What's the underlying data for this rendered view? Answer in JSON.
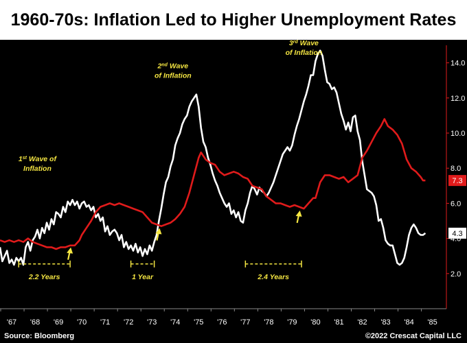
{
  "title": "1960-70s: Inflation Led to Higher Unemployment Rates",
  "footer": {
    "source": "Source: Bloomberg",
    "copyright": "©2022 Crescat Capital LLC"
  },
  "colors": {
    "inflation": "#ffffff",
    "unemployment": "#e01b1b",
    "annotation": "#f5e642",
    "background": "#000000"
  },
  "chart_data": {
    "type": "line",
    "title": "1960-70s: Inflation Led to Higher Unemployment Rates",
    "x_tick_labels": [
      "'67",
      "'68",
      "'69",
      "'70",
      "'71",
      "'72",
      "'73",
      "'74",
      "'75",
      "'76",
      "'77",
      "'78",
      "'79",
      "'80",
      "'81",
      "'82",
      "'83",
      "'84",
      "'85"
    ],
    "x_tick_years": [
      1967,
      1968,
      1969,
      1970,
      1971,
      1972,
      1973,
      1974,
      1975,
      1976,
      1977,
      1978,
      1979,
      1980,
      1981,
      1982,
      1983,
      1984,
      1985
    ],
    "xlim": [
      1966.5,
      1985.6
    ],
    "ylim": [
      0,
      15
    ],
    "y_ticks": [
      "2.0",
      "4.0",
      "6.0",
      "8.0",
      "10.0",
      "12.0",
      "14.0"
    ],
    "y_tick_values": [
      2,
      4,
      6,
      8,
      10,
      12,
      14
    ],
    "y_axis_side": "right",
    "grid": false,
    "series": [
      {
        "color": "#ffffff",
        "end_label": "4.3",
        "points": [
          [
            1966.5,
            3.5
          ],
          [
            1966.6,
            2.7
          ],
          [
            1966.8,
            3.3
          ],
          [
            1966.9,
            2.6
          ],
          [
            1967.0,
            2.8
          ],
          [
            1967.1,
            2.5
          ],
          [
            1967.2,
            2.9
          ],
          [
            1967.3,
            2.7
          ],
          [
            1967.4,
            2.9
          ],
          [
            1967.5,
            2.5
          ],
          [
            1967.6,
            3.5
          ],
          [
            1967.7,
            3.8
          ],
          [
            1967.8,
            3.3
          ],
          [
            1967.9,
            3.9
          ],
          [
            1968.0,
            4.1
          ],
          [
            1968.1,
            4.5
          ],
          [
            1968.2,
            4.0
          ],
          [
            1968.3,
            4.6
          ],
          [
            1968.4,
            4.3
          ],
          [
            1968.5,
            4.9
          ],
          [
            1968.6,
            4.5
          ],
          [
            1968.7,
            5.1
          ],
          [
            1968.8,
            4.8
          ],
          [
            1968.9,
            5.5
          ],
          [
            1969.0,
            5.4
          ],
          [
            1969.1,
            5.2
          ],
          [
            1969.2,
            5.8
          ],
          [
            1969.3,
            5.5
          ],
          [
            1969.4,
            6.1
          ],
          [
            1969.5,
            5.9
          ],
          [
            1969.6,
            6.2
          ],
          [
            1969.7,
            5.9
          ],
          [
            1969.8,
            6.1
          ],
          [
            1969.9,
            5.7
          ],
          [
            1970.0,
            6.0
          ],
          [
            1970.1,
            6.1
          ],
          [
            1970.2,
            5.8
          ],
          [
            1970.3,
            5.9
          ],
          [
            1970.4,
            5.6
          ],
          [
            1970.5,
            5.8
          ],
          [
            1970.6,
            5.2
          ],
          [
            1970.7,
            5.4
          ],
          [
            1970.8,
            5.0
          ],
          [
            1970.9,
            5.2
          ],
          [
            1971.0,
            4.4
          ],
          [
            1971.1,
            4.7
          ],
          [
            1971.2,
            4.2
          ],
          [
            1971.3,
            4.4
          ],
          [
            1971.4,
            4.5
          ],
          [
            1971.5,
            4.3
          ],
          [
            1971.6,
            3.9
          ],
          [
            1971.7,
            4.2
          ],
          [
            1971.8,
            3.5
          ],
          [
            1971.9,
            3.8
          ],
          [
            1972.0,
            3.4
          ],
          [
            1972.1,
            3.6
          ],
          [
            1972.2,
            3.3
          ],
          [
            1972.3,
            3.7
          ],
          [
            1972.4,
            3.2
          ],
          [
            1972.5,
            3.5
          ],
          [
            1972.6,
            3.0
          ],
          [
            1972.7,
            3.4
          ],
          [
            1972.8,
            3.1
          ],
          [
            1972.9,
            3.6
          ],
          [
            1973.0,
            3.3
          ],
          [
            1973.1,
            3.8
          ],
          [
            1973.2,
            4.2
          ],
          [
            1973.3,
            5.0
          ],
          [
            1973.4,
            5.7
          ],
          [
            1973.5,
            6.5
          ],
          [
            1973.6,
            7.2
          ],
          [
            1973.7,
            7.5
          ],
          [
            1973.8,
            8.1
          ],
          [
            1973.9,
            8.5
          ],
          [
            1974.0,
            9.3
          ],
          [
            1974.1,
            9.7
          ],
          [
            1974.2,
            10.0
          ],
          [
            1974.3,
            10.5
          ],
          [
            1974.4,
            10.8
          ],
          [
            1974.5,
            11.0
          ],
          [
            1974.6,
            11.5
          ],
          [
            1974.7,
            11.8
          ],
          [
            1974.8,
            12.0
          ],
          [
            1974.9,
            12.2
          ],
          [
            1975.0,
            11.5
          ],
          [
            1975.1,
            10.3
          ],
          [
            1975.2,
            9.5
          ],
          [
            1975.3,
            9.2
          ],
          [
            1975.4,
            8.6
          ],
          [
            1975.5,
            8.2
          ],
          [
            1975.6,
            7.7
          ],
          [
            1975.7,
            7.3
          ],
          [
            1975.8,
            7.0
          ],
          [
            1975.9,
            6.6
          ],
          [
            1976.0,
            6.3
          ],
          [
            1976.1,
            6.0
          ],
          [
            1976.2,
            5.8
          ],
          [
            1976.3,
            6.0
          ],
          [
            1976.4,
            5.4
          ],
          [
            1976.5,
            5.6
          ],
          [
            1976.6,
            5.2
          ],
          [
            1976.7,
            5.5
          ],
          [
            1976.8,
            5.0
          ],
          [
            1976.9,
            4.9
          ],
          [
            1977.0,
            5.6
          ],
          [
            1977.1,
            6.0
          ],
          [
            1977.2,
            6.6
          ],
          [
            1977.3,
            7.0
          ],
          [
            1977.4,
            6.8
          ],
          [
            1977.5,
            6.5
          ],
          [
            1977.6,
            6.9
          ],
          [
            1977.7,
            6.7
          ],
          [
            1977.8,
            6.6
          ],
          [
            1977.9,
            6.4
          ],
          [
            1978.0,
            6.6
          ],
          [
            1978.1,
            6.9
          ],
          [
            1978.2,
            7.2
          ],
          [
            1978.3,
            7.6
          ],
          [
            1978.4,
            8.0
          ],
          [
            1978.5,
            8.4
          ],
          [
            1978.6,
            8.8
          ],
          [
            1978.7,
            9.0
          ],
          [
            1978.8,
            9.2
          ],
          [
            1978.9,
            9.0
          ],
          [
            1979.0,
            9.3
          ],
          [
            1979.1,
            9.9
          ],
          [
            1979.2,
            10.4
          ],
          [
            1979.3,
            10.8
          ],
          [
            1979.4,
            11.3
          ],
          [
            1979.5,
            11.8
          ],
          [
            1979.6,
            12.2
          ],
          [
            1979.7,
            12.7
          ],
          [
            1979.8,
            13.3
          ],
          [
            1979.9,
            13.3
          ],
          [
            1980.0,
            14.1
          ],
          [
            1980.1,
            14.5
          ],
          [
            1980.2,
            14.7
          ],
          [
            1980.3,
            14.4
          ],
          [
            1980.4,
            13.6
          ],
          [
            1980.5,
            12.9
          ],
          [
            1980.6,
            12.8
          ],
          [
            1980.7,
            12.5
          ],
          [
            1980.8,
            12.6
          ],
          [
            1980.9,
            12.3
          ],
          [
            1981.0,
            11.7
          ],
          [
            1981.1,
            11.1
          ],
          [
            1981.2,
            10.7
          ],
          [
            1981.3,
            10.2
          ],
          [
            1981.4,
            10.6
          ],
          [
            1981.5,
            10.1
          ],
          [
            1981.6,
            10.9
          ],
          [
            1981.7,
            11.0
          ],
          [
            1981.8,
            10.1
          ],
          [
            1981.9,
            9.6
          ],
          [
            1982.0,
            8.4
          ],
          [
            1982.1,
            7.6
          ],
          [
            1982.2,
            6.8
          ],
          [
            1982.3,
            6.7
          ],
          [
            1982.4,
            6.6
          ],
          [
            1982.5,
            6.4
          ],
          [
            1982.6,
            5.9
          ],
          [
            1982.7,
            5.0
          ],
          [
            1982.8,
            5.1
          ],
          [
            1982.9,
            4.6
          ],
          [
            1983.0,
            3.9
          ],
          [
            1983.1,
            3.7
          ],
          [
            1983.2,
            3.6
          ],
          [
            1983.3,
            3.6
          ],
          [
            1983.4,
            3.1
          ],
          [
            1983.5,
            2.6
          ],
          [
            1983.6,
            2.5
          ],
          [
            1983.7,
            2.6
          ],
          [
            1983.8,
            2.9
          ],
          [
            1983.9,
            3.5
          ],
          [
            1984.0,
            4.2
          ],
          [
            1984.1,
            4.6
          ],
          [
            1984.2,
            4.8
          ],
          [
            1984.3,
            4.6
          ],
          [
            1984.4,
            4.3
          ],
          [
            1984.5,
            4.2
          ],
          [
            1984.6,
            4.2
          ],
          [
            1984.7,
            4.3
          ]
        ]
      },
      {
        "color": "#e01b1b",
        "end_label": "7.3",
        "points": [
          [
            1966.5,
            3.9
          ],
          [
            1966.7,
            3.8
          ],
          [
            1966.9,
            3.9
          ],
          [
            1967.1,
            3.8
          ],
          [
            1967.3,
            3.9
          ],
          [
            1967.5,
            3.8
          ],
          [
            1967.7,
            4.0
          ],
          [
            1967.9,
            3.8
          ],
          [
            1968.1,
            3.7
          ],
          [
            1968.3,
            3.6
          ],
          [
            1968.5,
            3.5
          ],
          [
            1968.7,
            3.5
          ],
          [
            1968.9,
            3.4
          ],
          [
            1969.1,
            3.5
          ],
          [
            1969.3,
            3.5
          ],
          [
            1969.5,
            3.6
          ],
          [
            1969.7,
            3.6
          ],
          [
            1969.9,
            3.9
          ],
          [
            1970.0,
            4.2
          ],
          [
            1970.2,
            4.6
          ],
          [
            1970.4,
            5.0
          ],
          [
            1970.6,
            5.5
          ],
          [
            1970.8,
            5.8
          ],
          [
            1971.0,
            5.9
          ],
          [
            1971.2,
            6.0
          ],
          [
            1971.4,
            5.9
          ],
          [
            1971.6,
            6.0
          ],
          [
            1971.8,
            5.9
          ],
          [
            1972.0,
            5.8
          ],
          [
            1972.2,
            5.7
          ],
          [
            1972.4,
            5.6
          ],
          [
            1972.6,
            5.5
          ],
          [
            1972.8,
            5.2
          ],
          [
            1973.0,
            4.9
          ],
          [
            1973.2,
            4.8
          ],
          [
            1973.4,
            4.7
          ],
          [
            1973.6,
            4.8
          ],
          [
            1973.8,
            4.9
          ],
          [
            1974.0,
            5.1
          ],
          [
            1974.2,
            5.4
          ],
          [
            1974.4,
            5.8
          ],
          [
            1974.6,
            6.6
          ],
          [
            1974.8,
            7.6
          ],
          [
            1975.0,
            8.6
          ],
          [
            1975.1,
            8.9
          ],
          [
            1975.3,
            8.5
          ],
          [
            1975.5,
            8.3
          ],
          [
            1975.7,
            8.2
          ],
          [
            1975.9,
            7.8
          ],
          [
            1976.1,
            7.6
          ],
          [
            1976.3,
            7.7
          ],
          [
            1976.5,
            7.8
          ],
          [
            1976.7,
            7.7
          ],
          [
            1976.9,
            7.5
          ],
          [
            1977.1,
            7.4
          ],
          [
            1977.3,
            7.0
          ],
          [
            1977.5,
            6.9
          ],
          [
            1977.7,
            6.8
          ],
          [
            1977.9,
            6.4
          ],
          [
            1978.1,
            6.2
          ],
          [
            1978.3,
            6.0
          ],
          [
            1978.5,
            6.0
          ],
          [
            1978.7,
            5.9
          ],
          [
            1978.9,
            5.8
          ],
          [
            1979.1,
            5.9
          ],
          [
            1979.3,
            5.8
          ],
          [
            1979.5,
            5.7
          ],
          [
            1979.7,
            6.0
          ],
          [
            1979.9,
            6.3
          ],
          [
            1980.0,
            6.3
          ],
          [
            1980.2,
            7.2
          ],
          [
            1980.4,
            7.6
          ],
          [
            1980.6,
            7.6
          ],
          [
            1980.8,
            7.5
          ],
          [
            1981.0,
            7.4
          ],
          [
            1981.2,
            7.5
          ],
          [
            1981.4,
            7.2
          ],
          [
            1981.6,
            7.4
          ],
          [
            1981.8,
            7.6
          ],
          [
            1982.0,
            8.6
          ],
          [
            1982.2,
            9.0
          ],
          [
            1982.4,
            9.5
          ],
          [
            1982.6,
            10.0
          ],
          [
            1982.8,
            10.4
          ],
          [
            1982.95,
            10.8
          ],
          [
            1983.1,
            10.4
          ],
          [
            1983.3,
            10.2
          ],
          [
            1983.5,
            9.9
          ],
          [
            1983.7,
            9.4
          ],
          [
            1983.9,
            8.5
          ],
          [
            1984.1,
            8.0
          ],
          [
            1984.3,
            7.8
          ],
          [
            1984.5,
            7.5
          ],
          [
            1984.6,
            7.3
          ],
          [
            1984.7,
            7.3
          ]
        ]
      }
    ],
    "annotations": [
      {
        "lines": [
          "1st Wave of",
          "Inflation"
        ],
        "superscript": "st",
        "x": 1968.1,
        "y": 8.4
      },
      {
        "lines": [
          "2nd Wave",
          "of Inflation"
        ],
        "superscript": "nd",
        "x": 1973.9,
        "y": 13.7
      },
      {
        "lines": [
          "3rd Wave",
          "of Inflation"
        ],
        "superscript": "rd",
        "x": 1979.5,
        "y": 15.0
      }
    ],
    "durations": [
      {
        "label": "2.2 Years",
        "x_start": 1967.3,
        "x_end": 1969.5,
        "y": 2.0
      },
      {
        "label": "1 Year",
        "x_start": 1972.1,
        "x_end": 1973.1,
        "y": 2.0
      },
      {
        "label": "2.4 Years",
        "x_start": 1977.0,
        "x_end": 1979.4,
        "y": 2.0
      }
    ],
    "arrows": [
      {
        "x": 1969.5,
        "y": 3.1
      },
      {
        "x": 1973.3,
        "y": 4.2
      },
      {
        "x": 1979.3,
        "y": 5.2
      }
    ]
  }
}
